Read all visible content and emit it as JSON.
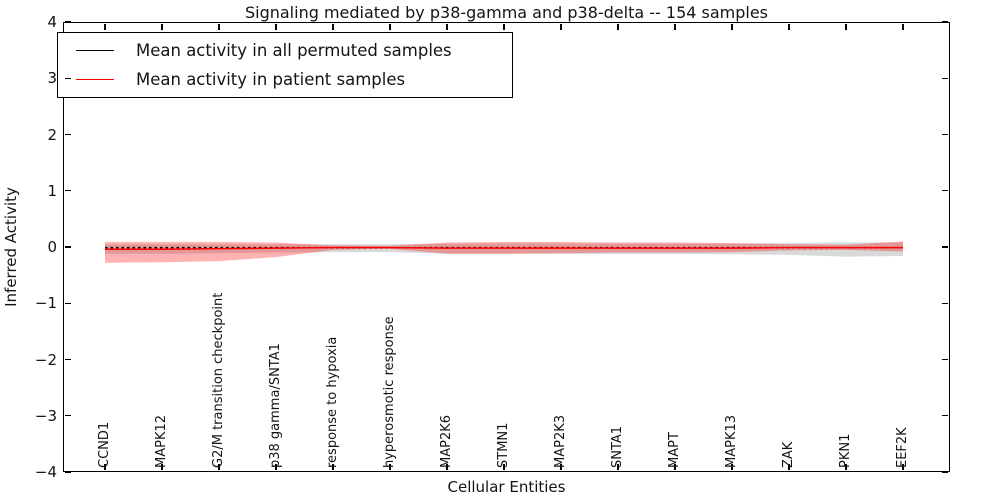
{
  "title": "Signaling mediated by p38-gamma and p38-delta -- 154 samples",
  "legend": {
    "position": "upper left",
    "items": [
      {
        "label": "Mean activity in all permuted samples",
        "color": "#000000"
      },
      {
        "label": "Mean activity in patient samples",
        "color": "#ff0000"
      }
    ]
  },
  "chart_data": {
    "type": "line",
    "title": "Signaling mediated by p38-gamma and p38-delta -- 154 samples",
    "xlabel": "Cellular Entities",
    "ylabel": "Inferred Activity",
    "ylim": [
      -4,
      4
    ],
    "yticks": [
      4,
      3,
      2,
      1,
      0,
      -1,
      -2,
      -3,
      -4
    ],
    "ytick_labels": [
      "4",
      "3",
      "2",
      "1",
      "0",
      "−1",
      "−2",
      "−3",
      "−4"
    ],
    "grid": false,
    "legend_position": "upper left",
    "categories": [
      "CCND1",
      "MAPK12",
      "G2/M transition checkpoint",
      "p38 gamma/SNTA1",
      "response to hypoxia",
      "hyperosmotic response",
      "MAP2K6",
      "STMN1",
      "MAP2K3",
      "SNTA1",
      "MAPT",
      "MAPK13",
      "ZAK",
      "PKN1",
      "EEF2K"
    ],
    "series": [
      {
        "name": "Mean activity in all permuted samples",
        "color": "#000000",
        "line_style": "dashed",
        "values": [
          -0.01,
          -0.01,
          -0.01,
          -0.01,
          -0.01,
          -0.01,
          -0.01,
          -0.01,
          -0.01,
          -0.01,
          -0.01,
          -0.01,
          -0.01,
          -0.01,
          -0.01
        ],
        "band_upper": [
          0.05,
          0.05,
          0.05,
          0.05,
          0.05,
          0.05,
          0.06,
          0.06,
          0.06,
          0.06,
          0.06,
          0.06,
          0.07,
          0.08,
          0.08
        ],
        "band_lower": [
          -0.12,
          -0.12,
          -0.11,
          -0.1,
          -0.09,
          -0.09,
          -0.12,
          -0.12,
          -0.12,
          -0.12,
          -0.12,
          -0.13,
          -0.14,
          -0.17,
          -0.16
        ],
        "band_color": "rgba(0,0,0,0.15)"
      },
      {
        "name": "Mean activity in patient samples",
        "color": "#ff0000",
        "line_style": "solid",
        "values": [
          -0.04,
          -0.04,
          -0.03,
          -0.02,
          -0.01,
          -0.01,
          -0.02,
          -0.02,
          -0.02,
          -0.02,
          -0.02,
          -0.02,
          -0.01,
          -0.01,
          -0.01
        ],
        "band_upper": [
          0.09,
          0.09,
          0.09,
          0.08,
          0.03,
          0.02,
          0.08,
          0.09,
          0.09,
          0.08,
          0.08,
          0.07,
          0.05,
          0.04,
          0.1
        ],
        "band_lower": [
          -0.28,
          -0.27,
          -0.25,
          -0.18,
          -0.05,
          -0.03,
          -0.12,
          -0.12,
          -0.11,
          -0.1,
          -0.1,
          -0.09,
          -0.06,
          -0.05,
          -0.08
        ],
        "band_color": "rgba(255,0,0,0.30)"
      }
    ]
  }
}
